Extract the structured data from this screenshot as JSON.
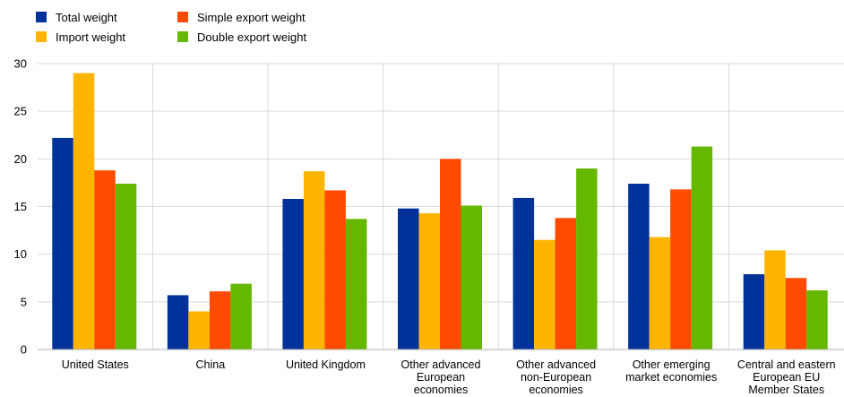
{
  "chart_data": {
    "type": "bar",
    "title": "",
    "xlabel": "",
    "ylabel": "",
    "ylim": [
      0,
      30
    ],
    "yticks": [
      0,
      5,
      10,
      15,
      20,
      25,
      30
    ],
    "grid": true,
    "legend_position": "top-left",
    "categories": [
      [
        "United States"
      ],
      [
        "China"
      ],
      [
        "United Kingdom"
      ],
      [
        "Other advanced",
        "European",
        "economies"
      ],
      [
        "Other advanced",
        "non-European",
        "economies"
      ],
      [
        "Other emerging",
        "market economies"
      ],
      [
        "Central and eastern",
        "European EU",
        "Member States"
      ]
    ],
    "series": [
      {
        "name": "Total weight",
        "color": "#003299",
        "values": [
          22.2,
          5.7,
          15.8,
          14.8,
          15.9,
          17.4,
          7.9
        ]
      },
      {
        "name": "Import weight",
        "color": "#FFB400",
        "values": [
          29.0,
          4.0,
          18.7,
          14.3,
          11.5,
          11.8,
          10.4
        ]
      },
      {
        "name": "Simple export weight",
        "color": "#FF4B00",
        "values": [
          18.8,
          6.1,
          16.7,
          20.0,
          13.8,
          16.8,
          7.5
        ]
      },
      {
        "name": "Double export weight",
        "color": "#65B800",
        "values": [
          17.4,
          6.9,
          13.7,
          15.1,
          19.0,
          21.3,
          6.2
        ]
      }
    ]
  }
}
